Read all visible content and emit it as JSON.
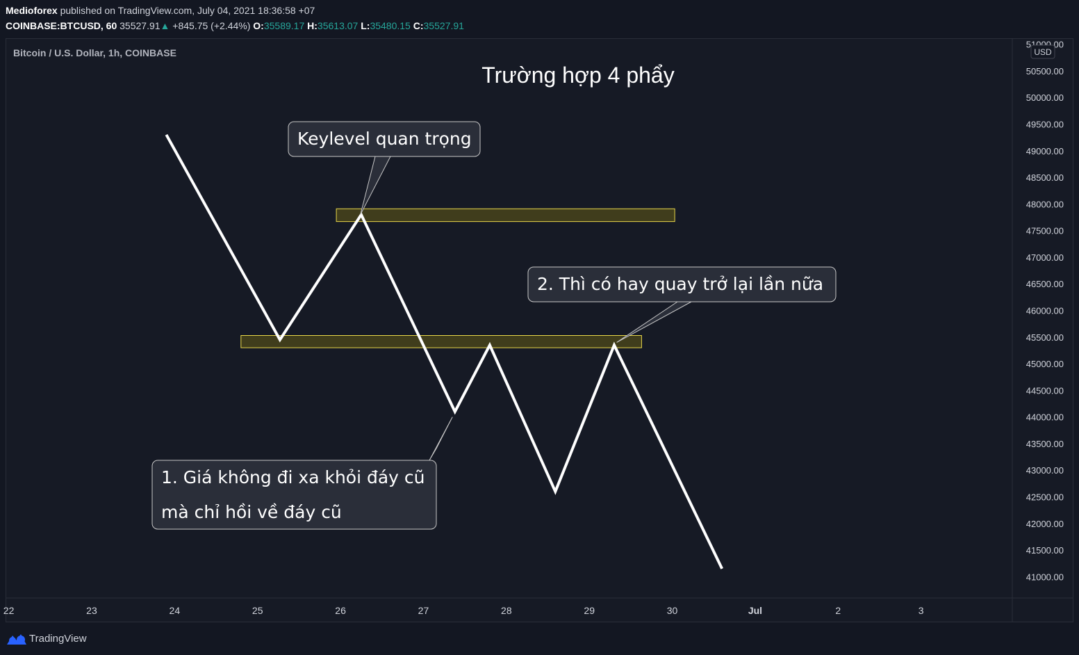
{
  "header": {
    "author": "Medioforex",
    "published": " published on TradingView.com, July 04, 2021 18:36:58 +07",
    "symbol": "COINBASE:BTCUSD, 60",
    "last": "35527.91",
    "change": "+845.75 (+2.44%)",
    "open_label": "O:",
    "open": "35589.17",
    "high_label": "H:",
    "high": "35613.07",
    "low_label": "L:",
    "low": "35480.15",
    "close_label": "C:",
    "close": "35527.91"
  },
  "chart_data": {
    "type": "line",
    "instrument_label": "Bitcoin / U.S. Dollar, 1h, COINBASE",
    "title": "Trường hợp 4 phẩy",
    "currency": "USD",
    "ylim": [
      40600,
      51100
    ],
    "y_ticks": [
      "51000.00",
      "50500.00",
      "50000.00",
      "49500.00",
      "49000.00",
      "48500.00",
      "48000.00",
      "47500.00",
      "47000.00",
      "46500.00",
      "46000.00",
      "45500.00",
      "45000.00",
      "44500.00",
      "44000.00",
      "43500.00",
      "43000.00",
      "42500.00",
      "42000.00",
      "41500.00",
      "41000.00"
    ],
    "x_ticks": [
      "22",
      "23",
      "24",
      "25",
      "26",
      "27",
      "28",
      "29",
      "30",
      "Jul",
      "2",
      "3"
    ],
    "xlim": [
      21.97,
      34.1
    ],
    "series": [
      {
        "x": [
          23.9,
          25.27,
          26.25,
          27.38,
          27.8,
          28.59,
          29.3,
          30.6
        ],
        "y": [
          49300,
          45450,
          47800,
          44100,
          45350,
          42600,
          45350,
          41150
        ]
      }
    ],
    "zones": [
      {
        "x0": 24.8,
        "x1": 29.63,
        "y0": 45300,
        "y1": 45530
      },
      {
        "x0": 25.95,
        "x1": 30.03,
        "y0": 47670,
        "y1": 47910
      }
    ],
    "annotations": [
      {
        "lines": [
          "Keylevel quan trọng"
        ],
        "target_x": 26.24,
        "target_y": 47800
      },
      {
        "lines": [
          "2. Thì có hay quay trở lại lần nữa"
        ],
        "target_x": 29.33,
        "target_y": 45400
      },
      {
        "lines": [
          "1. Giá không đi xa khỏi đáy cũ",
          "mà chỉ hồi về đáy cũ"
        ],
        "target_x": 27.35,
        "target_y": 44000
      }
    ],
    "colors": {
      "line": "#ffffff",
      "zone_fill": "#4f4a1a",
      "zone_stroke": "#e9d84a",
      "callout_bg": "#2a2e39",
      "callout_border": "#c8c8c8",
      "axis_text": "#d1d4dc",
      "up": "#26a69a"
    }
  },
  "footer": {
    "brand": "TradingView"
  }
}
